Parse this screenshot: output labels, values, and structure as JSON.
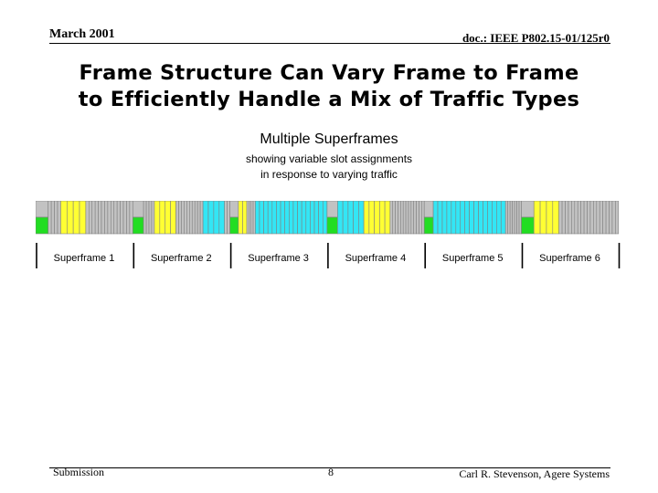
{
  "header": {
    "date": "March 2001",
    "doc_id": "doc.: IEEE P802.15-01/125r0"
  },
  "title": {
    "line1": "Frame Structure Can Vary Frame to Frame",
    "line2": "to Efficiently Handle a Mix of Traffic Types"
  },
  "figure": {
    "heading": "Multiple Superframes",
    "sub_line1": "showing variable slot assignments",
    "sub_line2": "in response to varying traffic",
    "colors": {
      "green": "#22dd22",
      "yellow": "#ffff33",
      "grey": "#c2c2c2",
      "cyan": "#33e6f5",
      "outline": "#808080"
    },
    "superframes": [
      {
        "label": "Superframe 1",
        "slots": [
          "gw",
          "t",
          "t",
          "t",
          "t",
          "y",
          "y",
          "y",
          "y",
          "t",
          "t",
          "t",
          "t",
          "t",
          "t",
          "t",
          "t",
          "t",
          "t",
          "t",
          "t",
          "t",
          "t",
          "t"
        ]
      },
      {
        "label": "Superframe 2",
        "slots": [
          "gw",
          "t",
          "t",
          "t",
          "t",
          "y",
          "y",
          "y",
          "y",
          "t",
          "t",
          "t",
          "t",
          "t",
          "t",
          "t",
          "t",
          "t",
          "t",
          "w",
          "w",
          "w",
          "w",
          "t",
          "t"
        ]
      },
      {
        "label": "Superframe 3",
        "slots": [
          "gw",
          "y",
          "y",
          "t",
          "t",
          "t",
          "t",
          "w",
          "w",
          "w",
          "w",
          "w",
          "w",
          "w",
          "w",
          "w",
          "w",
          "w",
          "w",
          "w",
          "w",
          "w",
          "w",
          "w"
        ]
      },
      {
        "label": "Superframe 4",
        "slots": [
          "gw",
          "w",
          "w",
          "w",
          "w",
          "w",
          "y",
          "y",
          "y",
          "y",
          "y",
          "t",
          "t",
          "t",
          "t",
          "t",
          "t",
          "t",
          "t",
          "t",
          "t",
          "t",
          "t",
          "t"
        ]
      },
      {
        "label": "Superframe 5",
        "slots": [
          "gw",
          "w",
          "w",
          "w",
          "w",
          "w",
          "w",
          "w",
          "w",
          "w",
          "w",
          "w",
          "w",
          "w",
          "w",
          "w",
          "w",
          "t",
          "t",
          "t",
          "t",
          "t",
          "t",
          "t"
        ]
      },
      {
        "label": "Superframe 6",
        "slots": [
          "gw",
          "y",
          "y",
          "y",
          "y",
          "t",
          "t",
          "t",
          "t",
          "t",
          "t",
          "t",
          "t",
          "t",
          "t",
          "t",
          "t",
          "t",
          "t",
          "t",
          "t",
          "t",
          "t",
          "t"
        ]
      }
    ]
  },
  "footer": {
    "left": "Submission",
    "page": "8",
    "author": "Carl R. Stevenson, Agere Systems"
  }
}
